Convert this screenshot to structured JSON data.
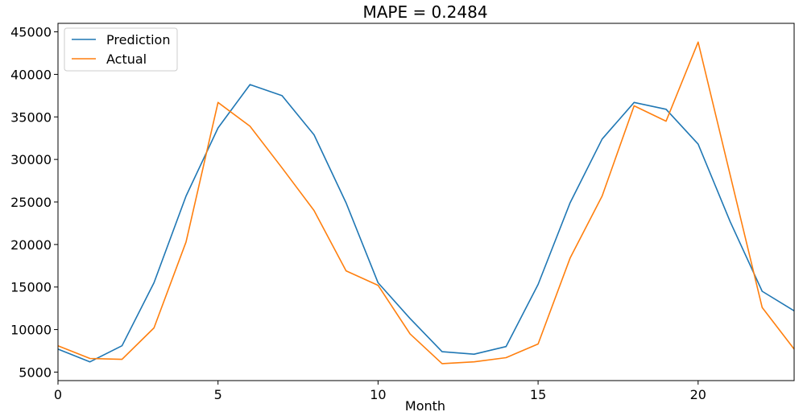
{
  "chart_data": {
    "type": "line",
    "title": "MAPE = 0.2484",
    "xlabel": "Month",
    "ylabel": "",
    "xlim": [
      0,
      23
    ],
    "ylim": [
      4000,
      46000
    ],
    "x_ticks": [
      0,
      5,
      10,
      15,
      20
    ],
    "y_ticks": [
      5000,
      10000,
      15000,
      20000,
      25000,
      30000,
      35000,
      40000,
      45000
    ],
    "legend_position": "top-left",
    "grid": false,
    "x": [
      0,
      1,
      2,
      3,
      4,
      5,
      6,
      7,
      8,
      9,
      10,
      11,
      12,
      13,
      14,
      15,
      16,
      17,
      18,
      19,
      20,
      21,
      22,
      23
    ],
    "series": [
      {
        "name": "Prediction",
        "color": "#1f77b4",
        "values": [
          7700,
          6200,
          8100,
          15500,
          25700,
          33700,
          38800,
          37500,
          32900,
          24900,
          15500,
          11300,
          7400,
          7100,
          8000,
          15300,
          24900,
          32400,
          36700,
          35900,
          31800,
          22700,
          14500,
          12200
        ]
      },
      {
        "name": "Actual",
        "color": "#ff7f0e",
        "values": [
          8100,
          6600,
          6500,
          10200,
          20300,
          36700,
          33900,
          29000,
          24000,
          16900,
          15200,
          9500,
          6000,
          6200,
          6700,
          8300,
          18400,
          25700,
          36300,
          34500,
          43800,
          28200,
          12600,
          7700
        ]
      }
    ]
  }
}
